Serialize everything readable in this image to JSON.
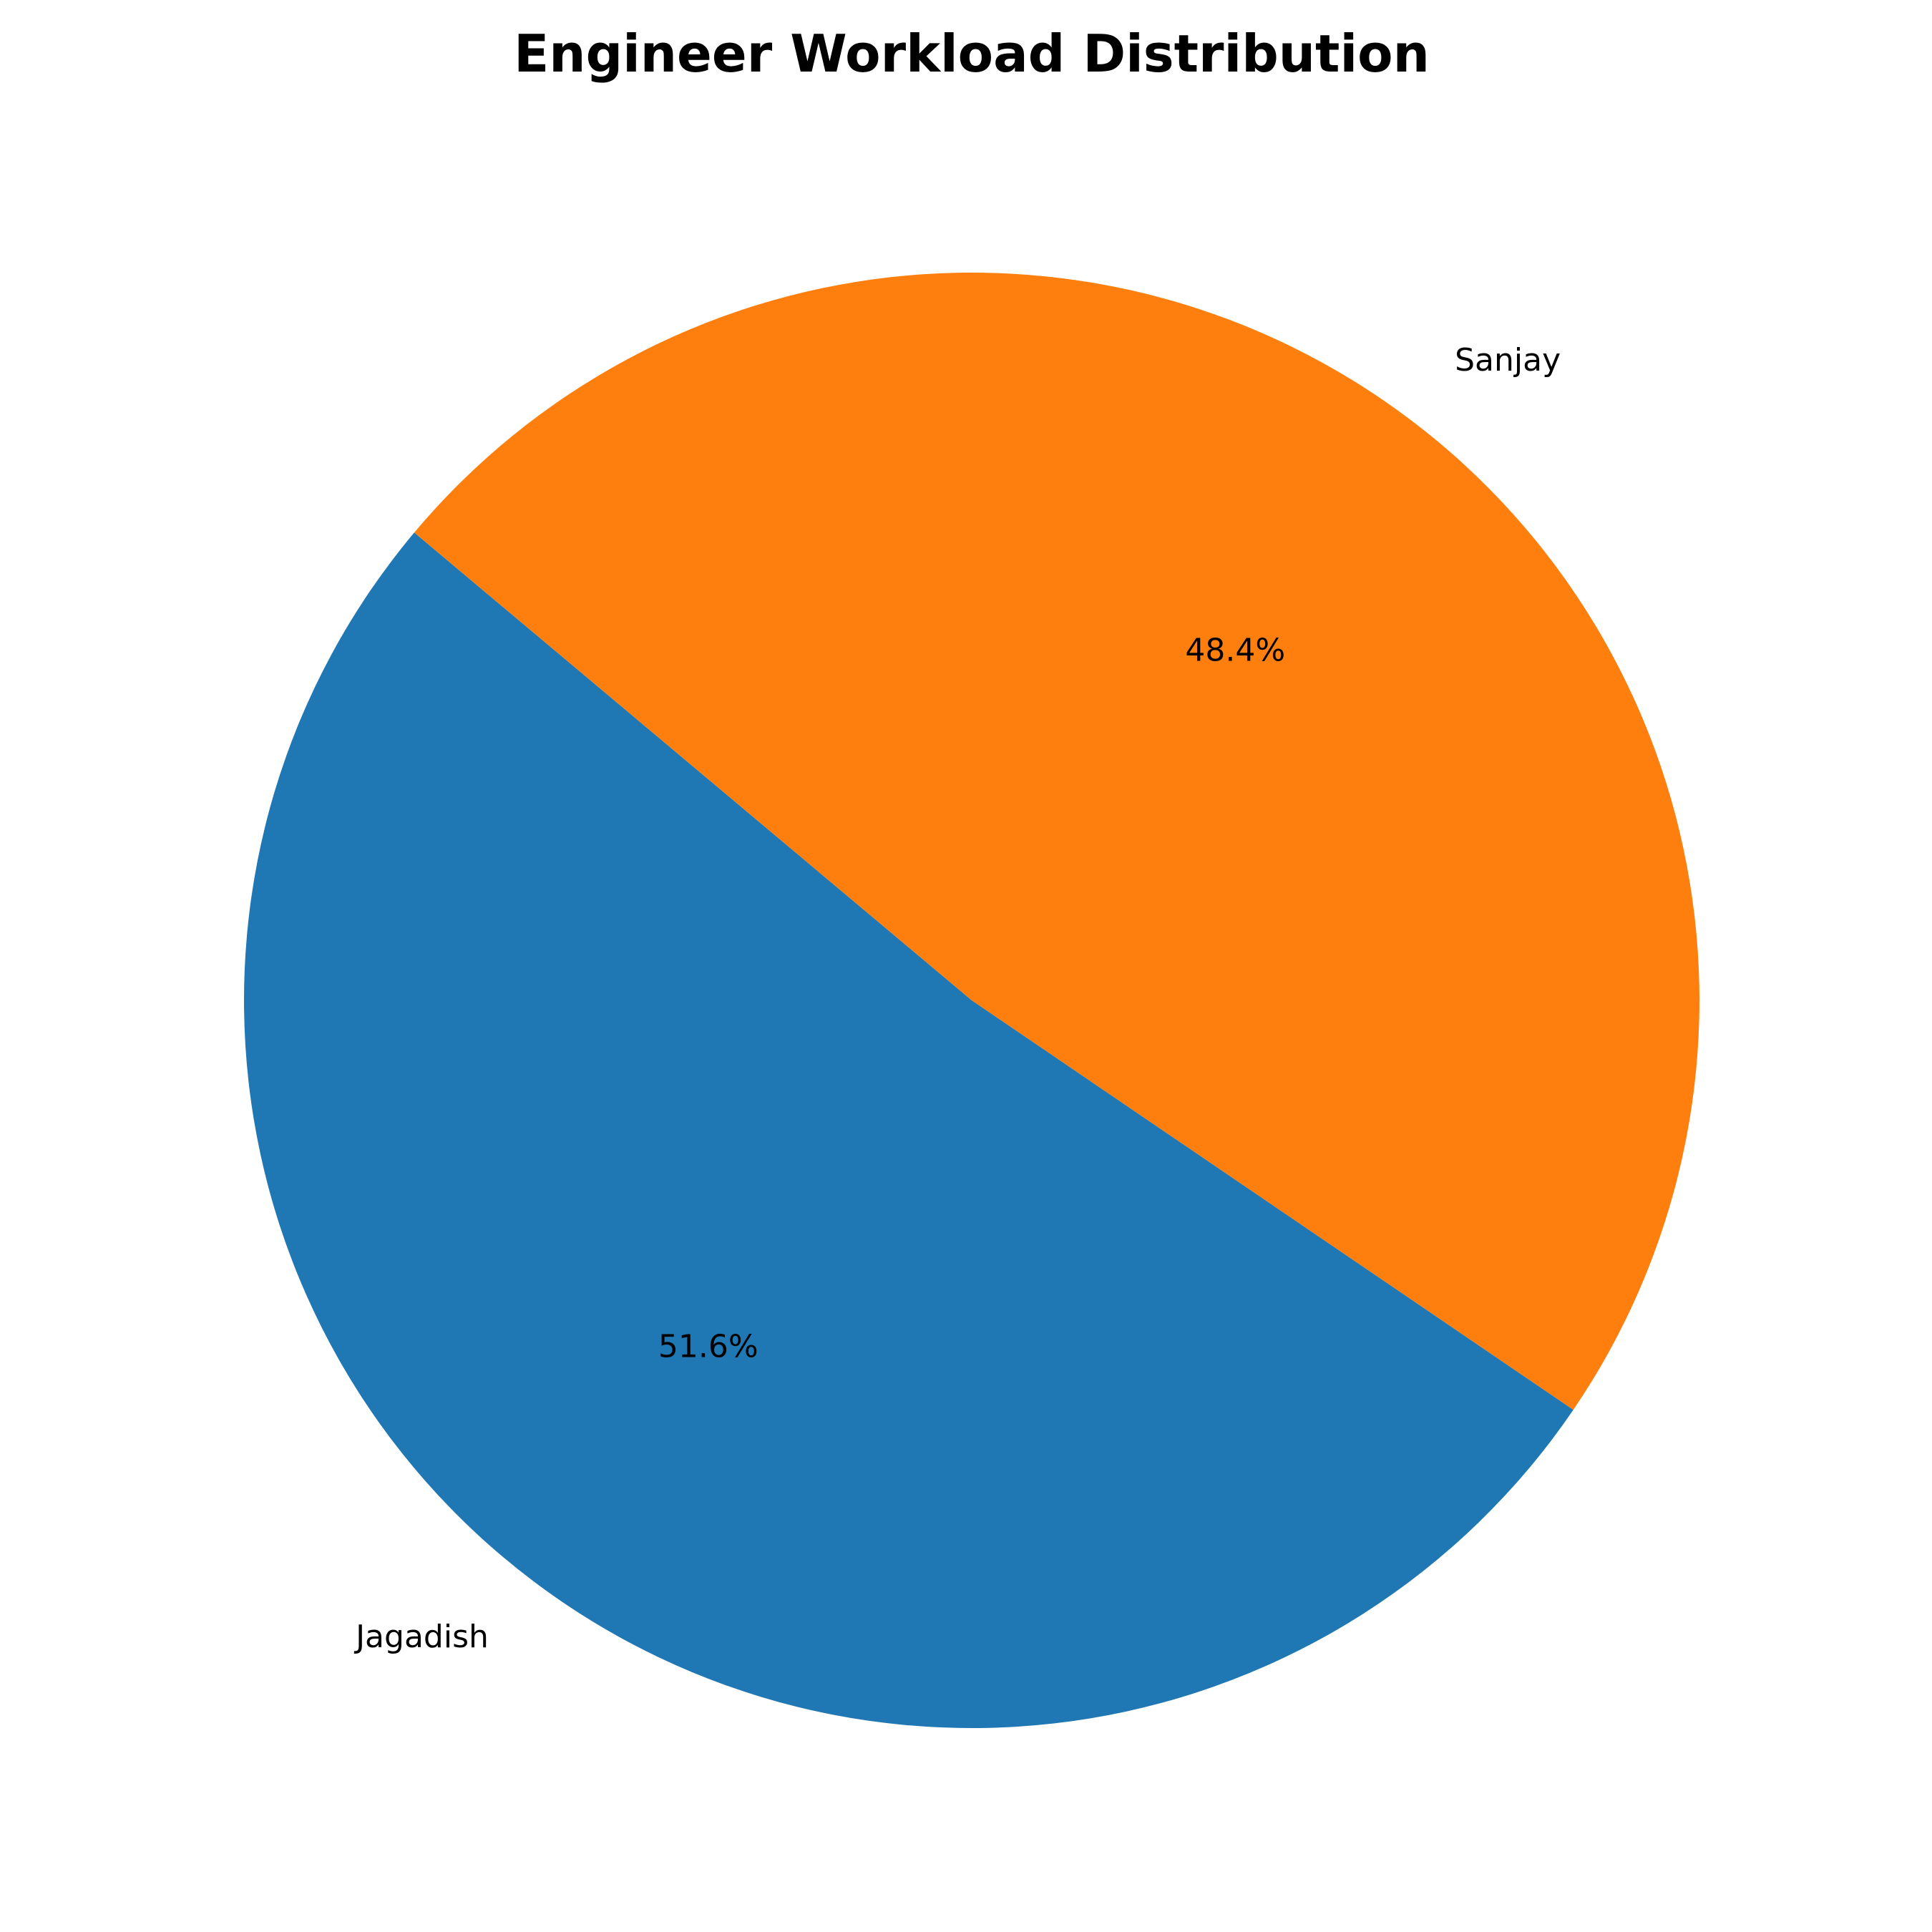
{
  "chart_data": {
    "type": "pie",
    "title": "Engineer Workload Distribution",
    "slices": [
      {
        "label": "Jagadish",
        "value": 51.6,
        "pct_label": "51.6%",
        "color": "#1f77b4"
      },
      {
        "label": "Sanjay",
        "value": 48.4,
        "pct_label": "48.4%",
        "color": "#ff7f0e"
      }
    ],
    "start_angle_deg": 140,
    "direction": "counterclockwise",
    "legend": "none"
  }
}
